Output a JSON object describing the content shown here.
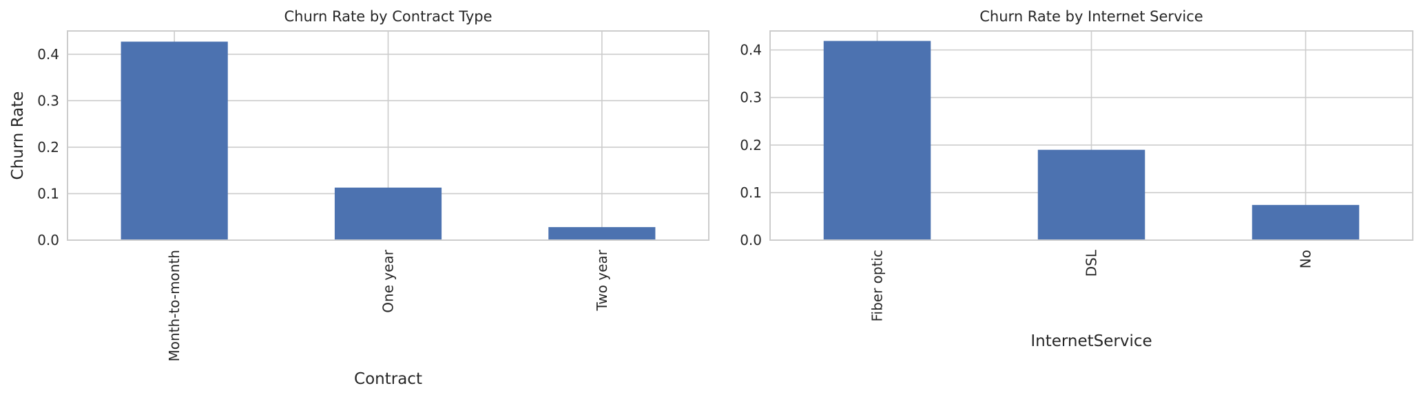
{
  "chart_data": [
    {
      "type": "bar",
      "title": "Churn Rate by Contract Type",
      "xlabel": "Contract",
      "ylabel": "Churn Rate",
      "categories": [
        "Month-to-month",
        "One year",
        "Two year"
      ],
      "values": [
        0.427,
        0.113,
        0.028
      ],
      "ylim": [
        0,
        0.45
      ],
      "yticks": [
        0.0,
        0.1,
        0.2,
        0.3,
        0.4
      ],
      "ytick_labels": [
        "0.0",
        "0.1",
        "0.2",
        "0.3",
        "0.4"
      ],
      "grid": true,
      "bar_color": "#4c72b0"
    },
    {
      "type": "bar",
      "title": "Churn Rate by Internet Service",
      "xlabel": "InternetService",
      "ylabel": "",
      "categories": [
        "Fiber optic",
        "DSL",
        "No"
      ],
      "values": [
        0.419,
        0.19,
        0.074
      ],
      "ylim": [
        0,
        0.44
      ],
      "yticks": [
        0.0,
        0.1,
        0.2,
        0.3,
        0.4
      ],
      "ytick_labels": [
        "0.0",
        "0.1",
        "0.2",
        "0.3",
        "0.4"
      ],
      "grid": true,
      "bar_color": "#4c72b0"
    }
  ]
}
